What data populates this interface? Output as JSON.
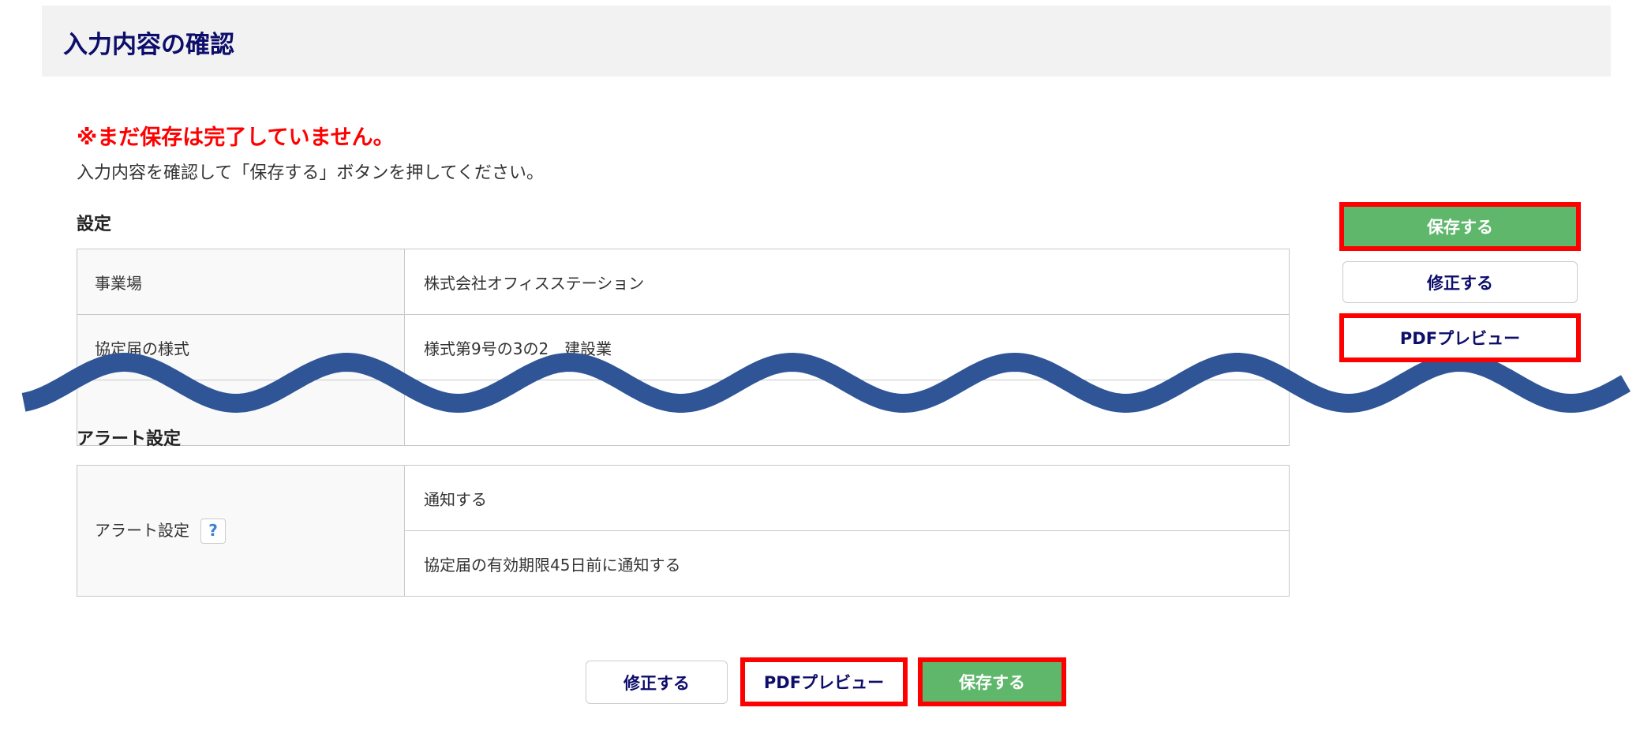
{
  "header": {
    "title": "入力内容の確認"
  },
  "notice": {
    "warning": "※まだ保存は完了していません。",
    "instruction": "入力内容を確認して「保存する」ボタンを押してください。"
  },
  "settings": {
    "heading": "設定",
    "rows": [
      {
        "label": "事業場",
        "value": "株式会社オフィスステーション"
      },
      {
        "label": "協定届の様式",
        "value": "様式第9号の3の2　建設業"
      }
    ]
  },
  "alert": {
    "heading": "アラート設定",
    "label": "アラート設定",
    "help_icon": "?",
    "values": [
      "通知する",
      "協定届の有効期限45日前に通知する"
    ]
  },
  "buttons": {
    "save": "保存する",
    "edit": "修正する",
    "pdf": "PDFプレビュー"
  },
  "colors": {
    "accent_navy": "#0d0d6b",
    "save_green": "#5fb76b",
    "warning_red": "#ff0000",
    "highlight_red": "#ff0000",
    "wave_blue": "#2f5597"
  }
}
